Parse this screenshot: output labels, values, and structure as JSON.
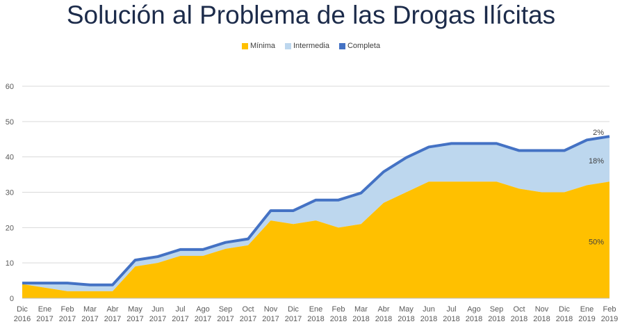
{
  "chart_data": {
    "type": "area",
    "title": "Solución al Problema de las Drogas Ilícitas",
    "x": [
      [
        "Dic",
        "2016"
      ],
      [
        "Ene",
        "2017"
      ],
      [
        "Feb",
        "2017"
      ],
      [
        "Mar",
        "2017"
      ],
      [
        "Abr",
        "2017"
      ],
      [
        "May",
        "2017"
      ],
      [
        "Jun",
        "2017"
      ],
      [
        "Jul",
        "2017"
      ],
      [
        "Ago",
        "2017"
      ],
      [
        "Sep",
        "2017"
      ],
      [
        "Oct",
        "2017"
      ],
      [
        "Nov",
        "2017"
      ],
      [
        "Dic",
        "2017"
      ],
      [
        "Ene",
        "2018"
      ],
      [
        "Feb",
        "2018"
      ],
      [
        "Mar",
        "2018"
      ],
      [
        "Abr",
        "2018"
      ],
      [
        "May",
        "2018"
      ],
      [
        "Jun",
        "2018"
      ],
      [
        "Jul",
        "2018"
      ],
      [
        "Ago",
        "2018"
      ],
      [
        "Sep",
        "2018"
      ],
      [
        "Oct",
        "2018"
      ],
      [
        "Nov",
        "2018"
      ],
      [
        "Dic",
        "2018"
      ],
      [
        "Ene",
        "2019"
      ],
      [
        "Feb",
        "2019"
      ]
    ],
    "stacked": true,
    "series": [
      {
        "name": "Mínima",
        "color": "#ffc000",
        "values": [
          4,
          3,
          2,
          2,
          2,
          9,
          10,
          12,
          12,
          14,
          15,
          22,
          21,
          22,
          20,
          21,
          27,
          30,
          33,
          33,
          33,
          33,
          31,
          30,
          30,
          32,
          33
        ]
      },
      {
        "name": "Intermedia",
        "color": "#bdd7ee",
        "values": [
          0,
          1,
          2,
          1.5,
          1.5,
          1.5,
          1.5,
          1.5,
          1.5,
          1.5,
          1.5,
          2.5,
          3.5,
          5.5,
          7.5,
          8.5,
          8.5,
          9.5,
          9.5,
          10.5,
          10.5,
          10.5,
          10.5,
          11.5,
          11.5,
          12.5,
          12.5
        ]
      },
      {
        "name": "Completa",
        "color": "#4472c4",
        "values": [
          0,
          0,
          0,
          0,
          0,
          0,
          0,
          0,
          0,
          0,
          0,
          0,
          0,
          0,
          0,
          0,
          0,
          0,
          0,
          0,
          0,
          0,
          0,
          0,
          0,
          0,
          0
        ]
      }
    ],
    "ylim": [
      0,
      60
    ],
    "yticks": [
      0,
      10,
      20,
      30,
      40,
      50,
      60
    ],
    "grid": true,
    "legend_position": "top",
    "annotations": [
      {
        "text": "2%",
        "x_index": 26,
        "y": 47
      },
      {
        "text": "18%",
        "x_index": 26,
        "y": 39
      },
      {
        "text": "50%",
        "x_index": 26,
        "y": 16
      }
    ]
  }
}
